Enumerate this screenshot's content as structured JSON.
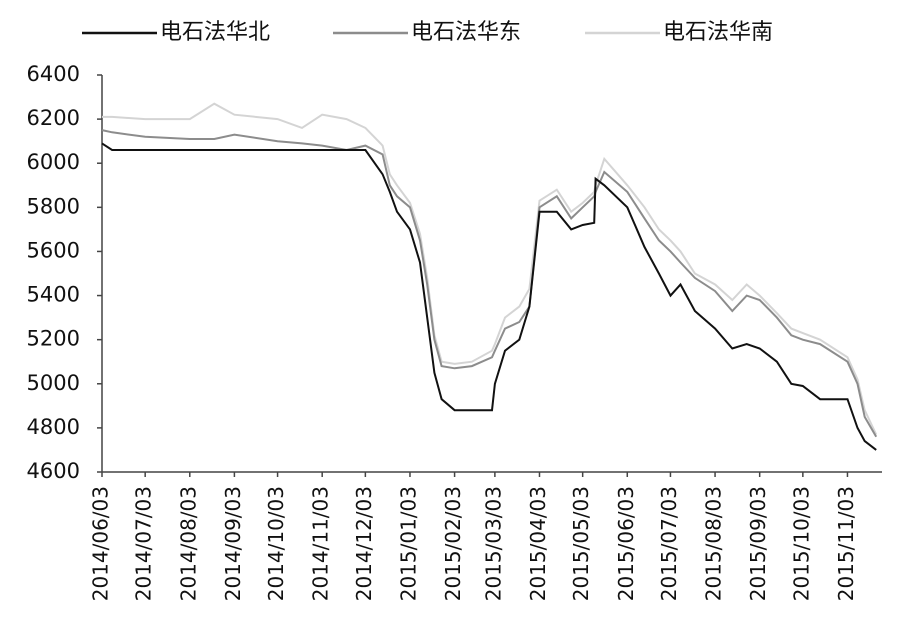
{
  "chart_data": {
    "type": "line",
    "legend": "top",
    "x": [
      "2014/06/03",
      "2014/06/10",
      "2014/07/03",
      "2014/08/03",
      "2014/08/20",
      "2014/09/03",
      "2014/10/03",
      "2014/10/20",
      "2014/11/03",
      "2014/11/20",
      "2014/12/03",
      "2014/12/15",
      "2014/12/20",
      "2014/12/25",
      "2015/01/03",
      "2015/01/10",
      "2015/01/15",
      "2015/01/20",
      "2015/01/25",
      "2015/02/03",
      "2015/02/15",
      "2015/03/01",
      "2015/03/03",
      "2015/03/10",
      "2015/03/20",
      "2015/03/27",
      "2015/04/03",
      "2015/04/15",
      "2015/04/25",
      "2015/05/03",
      "2015/05/11",
      "2015/05/12",
      "2015/05/18",
      "2015/06/03",
      "2015/06/15",
      "2015/06/25",
      "2015/07/03",
      "2015/07/10",
      "2015/07/20",
      "2015/08/03",
      "2015/08/15",
      "2015/08/25",
      "2015/09/03",
      "2015/09/15",
      "2015/09/25",
      "2015/10/03",
      "2015/10/15",
      "2015/11/03",
      "2015/11/10",
      "2015/11/15",
      "2015/11/23"
    ],
    "series": [
      {
        "name": "电石法华北",
        "color": "#111111",
        "values": [
          6090,
          6060,
          6060,
          6060,
          6060,
          6060,
          6060,
          6060,
          6060,
          6060,
          6060,
          5950,
          5870,
          5780,
          5700,
          5550,
          5300,
          5050,
          4930,
          4880,
          4880,
          4880,
          5000,
          5150,
          5200,
          5350,
          5780,
          5780,
          5700,
          5720,
          5730,
          5930,
          5900,
          5800,
          5620,
          5500,
          5400,
          5450,
          5330,
          5250,
          5160,
          5180,
          5160,
          5100,
          5000,
          4990,
          4930,
          4930,
          4800,
          4740,
          4700
        ]
      },
      {
        "name": "电石法华东",
        "color": "#8c8c8c",
        "values": [
          6150,
          6140,
          6120,
          6110,
          6110,
          6130,
          6100,
          6090,
          6080,
          6060,
          6080,
          6040,
          5900,
          5850,
          5800,
          5650,
          5450,
          5200,
          5080,
          5070,
          5080,
          5120,
          5150,
          5250,
          5280,
          5350,
          5800,
          5850,
          5750,
          5800,
          5850,
          5870,
          5960,
          5870,
          5750,
          5650,
          5600,
          5550,
          5480,
          5420,
          5330,
          5400,
          5380,
          5300,
          5220,
          5200,
          5180,
          5100,
          5000,
          4850,
          4760
        ]
      },
      {
        "name": "电石法华南",
        "color": "#d4d4d4",
        "values": [
          6210,
          6210,
          6200,
          6200,
          6270,
          6220,
          6200,
          6160,
          6220,
          6200,
          6160,
          6080,
          5950,
          5900,
          5820,
          5680,
          5480,
          5220,
          5100,
          5090,
          5100,
          5150,
          5180,
          5300,
          5350,
          5430,
          5830,
          5880,
          5780,
          5820,
          5870,
          5900,
          6020,
          5900,
          5800,
          5700,
          5650,
          5600,
          5500,
          5450,
          5380,
          5450,
          5400,
          5320,
          5250,
          5230,
          5200,
          5120,
          5020,
          4880,
          4770
        ]
      }
    ],
    "xlim": [
      "2014/06/03",
      "2015/11/27"
    ],
    "xticks": [
      "2014/06/03",
      "2014/07/03",
      "2014/08/03",
      "2014/09/03",
      "2014/10/03",
      "2014/11/03",
      "2014/12/03",
      "2015/01/03",
      "2015/02/03",
      "2015/03/03",
      "2015/04/03",
      "2015/05/03",
      "2015/06/03",
      "2015/07/03",
      "2015/08/03",
      "2015/09/03",
      "2015/10/03",
      "2015/11/03"
    ],
    "ylim": [
      4600,
      6400
    ],
    "yticks": [
      4600,
      4800,
      5000,
      5200,
      5400,
      5600,
      5800,
      6000,
      6200,
      6400
    ]
  }
}
